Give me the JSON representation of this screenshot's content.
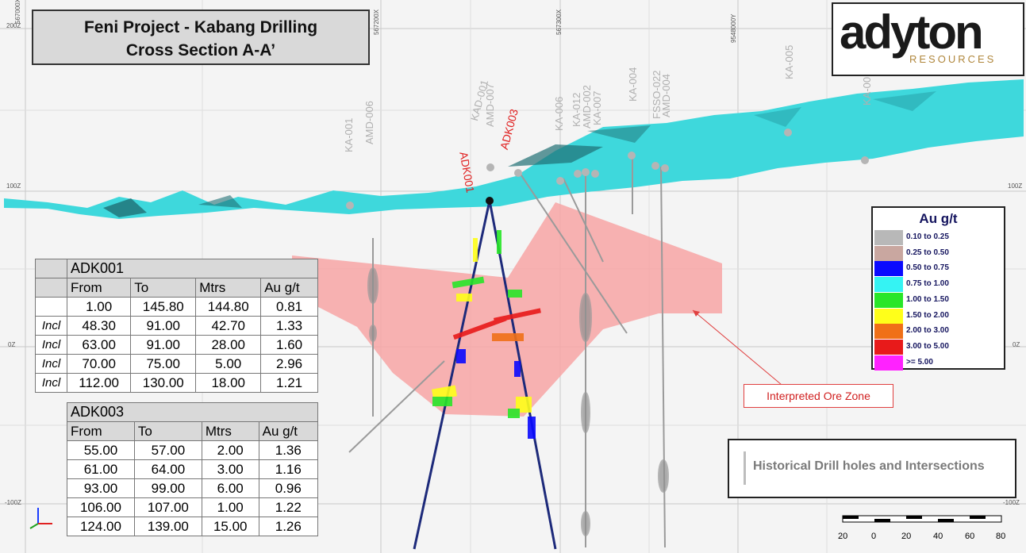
{
  "title": {
    "line1": "Feni Project - Kabang Drilling",
    "line2": "Cross Section A-A’"
  },
  "logo": {
    "main": "adyton",
    "sub": "RESOURCES"
  },
  "section_labels": {
    "ka001": "KA-001",
    "amd006": "AMD-006",
    "kad001": "KAD-001",
    "amd007": "AMD-007",
    "adk001": "ADK001",
    "adk003": "ADK003",
    "ka006": "KA-006",
    "ka012": "KA-012",
    "amd002": "AMD-002",
    "ka007": "KA-007",
    "ka004": "KA-004",
    "fsso022": "FSSO-022",
    "amd004": "AMD-004",
    "ka005": "KA-005",
    "ka00x": "KA-00"
  },
  "grid_labels": {
    "z200": "200Z",
    "z100l": "100Z",
    "z100r": "100Z",
    "z0l": "0Z",
    "z0r": "0Z",
    "zm100l": "-100Z",
    "zm100r": "-100Z",
    "x1": "567000X",
    "x2": "567200X",
    "x3": "567300X",
    "x4": "9548000Y"
  },
  "adk001": {
    "name": "ADK001",
    "headers": [
      "From",
      "To",
      "Mtrs",
      "Au g/t"
    ],
    "rows": [
      {
        "pre": "",
        "from": "1.00",
        "to": "145.80",
        "mtrs": "144.80",
        "au": "0.81"
      },
      {
        "pre": "Incl",
        "from": "48.30",
        "to": "91.00",
        "mtrs": "42.70",
        "au": "1.33"
      },
      {
        "pre": "Incl",
        "from": "63.00",
        "to": "91.00",
        "mtrs": "28.00",
        "au": "1.60"
      },
      {
        "pre": "Incl",
        "from": "70.00",
        "to": "75.00",
        "mtrs": "5.00",
        "au": "2.96"
      },
      {
        "pre": "Incl",
        "from": "112.00",
        "to": "130.00",
        "mtrs": "18.00",
        "au": "1.21"
      }
    ]
  },
  "adk003": {
    "name": "ADK003",
    "headers": [
      "From",
      "To",
      "Mtrs",
      "Au g/t"
    ],
    "rows": [
      {
        "from": "55.00",
        "to": "57.00",
        "mtrs": "2.00",
        "au": "1.36"
      },
      {
        "from": "61.00",
        "to": "64.00",
        "mtrs": "3.00",
        "au": "1.16"
      },
      {
        "from": "93.00",
        "to": "99.00",
        "mtrs": "6.00",
        "au": "0.96"
      },
      {
        "from": "106.00",
        "to": "107.00",
        "mtrs": "1.00",
        "au": "1.22"
      },
      {
        "from": "124.00",
        "to": "139.00",
        "mtrs": "15.00",
        "au": "1.26"
      }
    ]
  },
  "legend": {
    "title": "Au g/t",
    "items": [
      {
        "label": "0.10 to 0.25",
        "color": "#b8b8b8"
      },
      {
        "label": "0.25 to 0.50",
        "color": "#c9a7a0"
      },
      {
        "label": "0.50 to 0.75",
        "color": "#0a0aff"
      },
      {
        "label": "0.75 to 1.00",
        "color": "#35f3f3"
      },
      {
        "label": "1.00 to 1.50",
        "color": "#28e628"
      },
      {
        "label": "1.50 to 2.00",
        "color": "#ffff1a"
      },
      {
        "label": "2.00 to 3.00",
        "color": "#f07018"
      },
      {
        "label": "3.00 to 5.00",
        "color": "#e81a1a"
      },
      {
        "label": ">= 5.00",
        "color": "#ff22ff"
      }
    ]
  },
  "ore_zone_label": "Interpreted Ore Zone",
  "historical_label": "Historical Drill holes and Intersections",
  "scale_bar": {
    "labels": [
      "20",
      "0",
      "20",
      "40",
      "60",
      "80"
    ]
  },
  "colors": {
    "ore_zone": "#f7a0a0",
    "topo": "#3ed8dc",
    "topo_dark": "#1f8a8f",
    "accent_red": "#e02020"
  }
}
